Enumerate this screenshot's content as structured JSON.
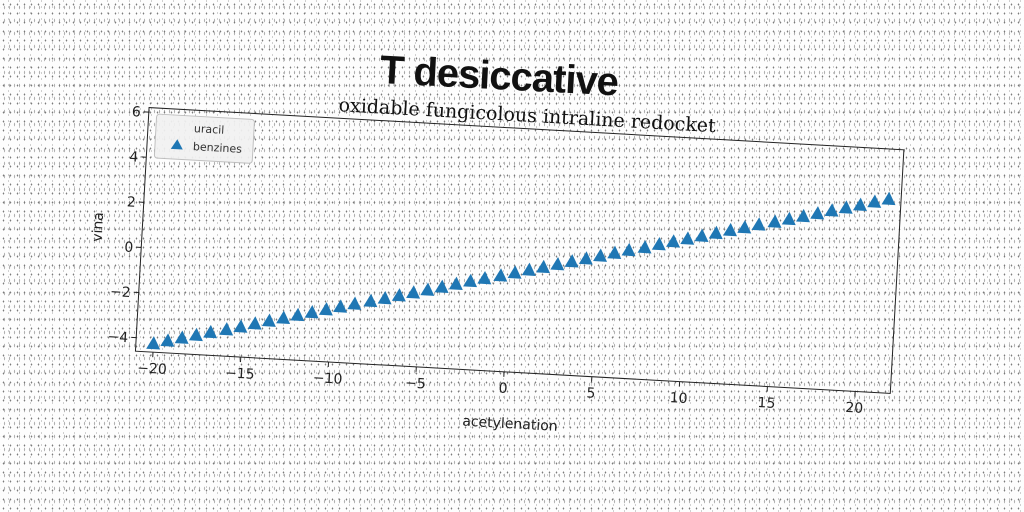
{
  "title": "T desiccative",
  "chart_data": {
    "type": "scatter",
    "title": "oxidable fungicolous intraline redocket",
    "xlabel": "acetylenation",
    "ylabel": "vina",
    "xlim": [
      -21,
      22
    ],
    "ylim": [
      -4.6,
      6.2
    ],
    "xticks": [
      -20,
      -15,
      -10,
      -5,
      0,
      5,
      10,
      15,
      20
    ],
    "xtick_labels": [
      "−20",
      "−15",
      "−10",
      "−5",
      "0",
      "5",
      "10",
      "15",
      "20"
    ],
    "yticks": [
      -4,
      -2,
      0,
      2,
      4,
      6
    ],
    "ytick_labels": [
      "−4",
      "−2",
      "0",
      "2",
      "4",
      "6"
    ],
    "grid": false,
    "legend_position": "upper-left",
    "series": [
      {
        "name": "uracil",
        "marker": "none",
        "color": "#1f77b4",
        "x": [],
        "y": []
      },
      {
        "name": "benzines",
        "marker": "triangle",
        "color": "#1f77b4",
        "x": [
          -20.0,
          -19.2,
          -18.4,
          -17.6,
          -16.8,
          -15.9,
          -15.1,
          -14.3,
          -13.5,
          -12.7,
          -11.9,
          -11.1,
          -10.3,
          -9.5,
          -8.7,
          -7.8,
          -7.0,
          -6.2,
          -5.4,
          -4.6,
          -3.8,
          -3.0,
          -2.2,
          -1.4,
          -0.5,
          0.3,
          1.1,
          1.9,
          2.7,
          3.5,
          4.3,
          5.1,
          5.9,
          6.7,
          7.6,
          8.4,
          9.2,
          10.0,
          10.8,
          11.6,
          12.4,
          13.2,
          14.0,
          14.9,
          15.7,
          16.5,
          17.3,
          18.1,
          18.9,
          19.7,
          20.5,
          21.3
        ],
        "y": [
          -4.2,
          -4.04,
          -3.88,
          -3.72,
          -3.56,
          -3.4,
          -3.24,
          -3.07,
          -2.91,
          -2.75,
          -2.59,
          -2.43,
          -2.27,
          -2.11,
          -1.95,
          -1.79,
          -1.63,
          -1.47,
          -1.31,
          -1.15,
          -0.99,
          -0.82,
          -0.66,
          -0.5,
          -0.34,
          -0.18,
          -0.02,
          0.14,
          0.3,
          0.46,
          0.62,
          0.78,
          0.94,
          1.1,
          1.26,
          1.43,
          1.59,
          1.75,
          1.91,
          2.07,
          2.23,
          2.39,
          2.55,
          2.71,
          2.87,
          3.03,
          3.19,
          3.35,
          3.51,
          3.67,
          3.84,
          4.0
        ]
      }
    ]
  }
}
